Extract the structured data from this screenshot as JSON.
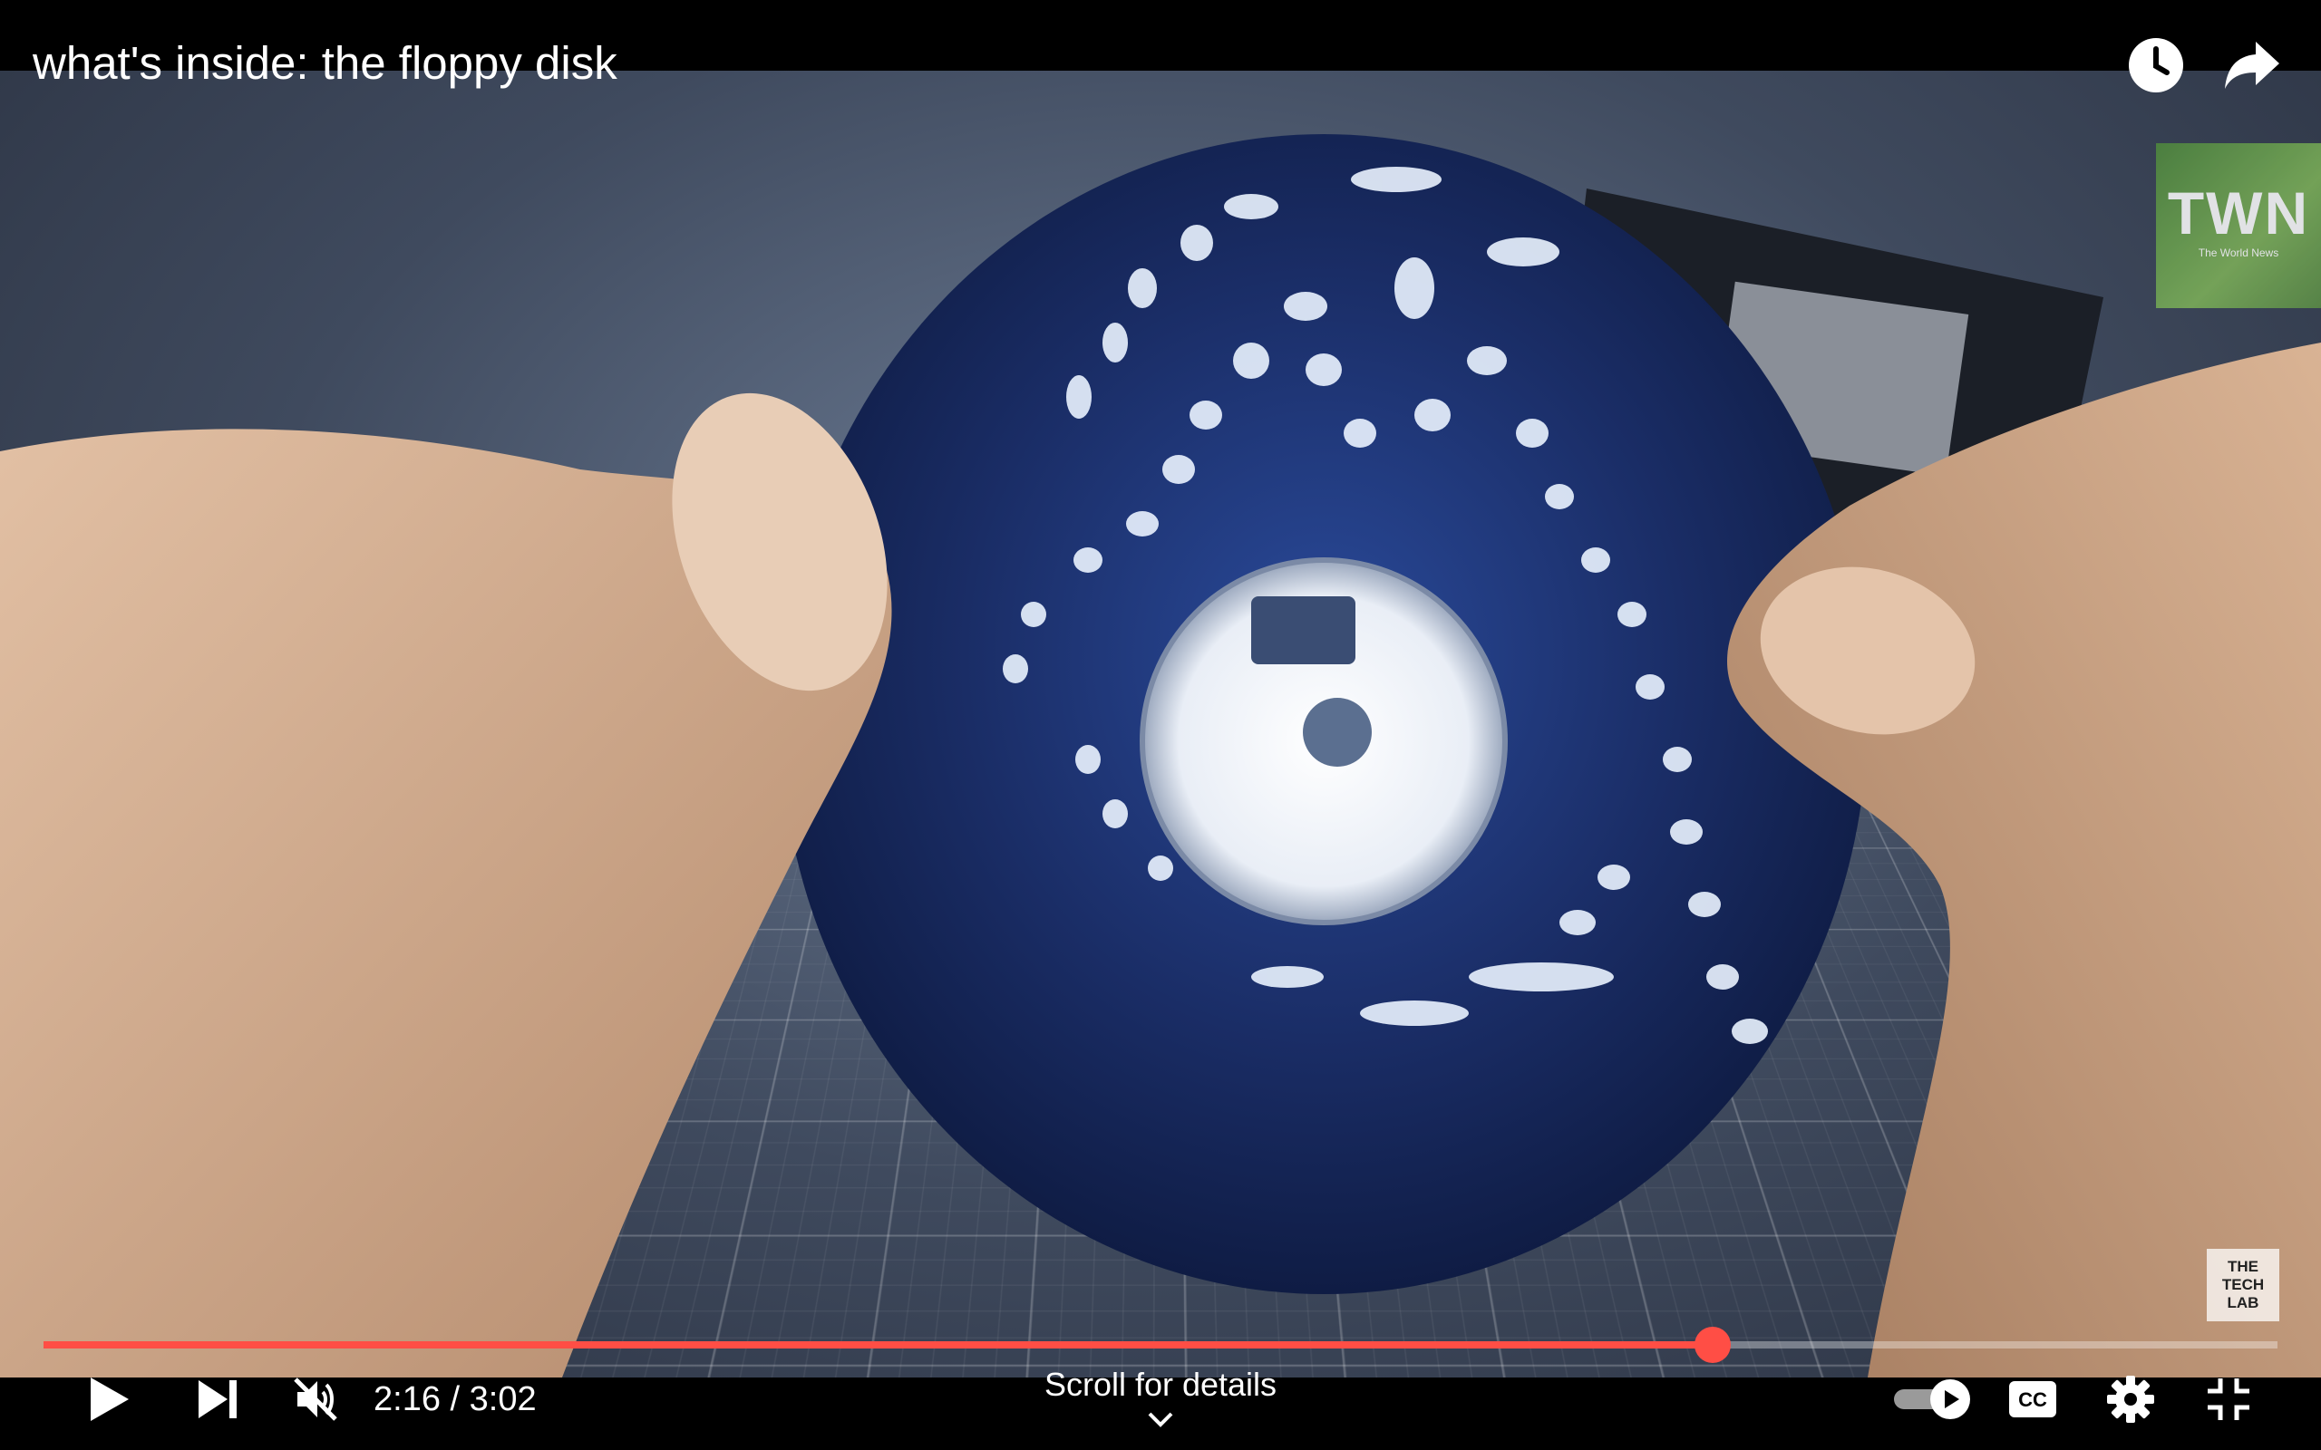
{
  "video": {
    "title": "what's inside: the floppy disk",
    "channel_badge": "TWN",
    "channel_badge_sub": "The World News",
    "watermark_lines": [
      "THE",
      "TECH",
      "LAB"
    ]
  },
  "top_actions": [
    {
      "icon": "clock-icon",
      "action": "watch-later"
    },
    {
      "icon": "share-icon",
      "action": "share"
    }
  ],
  "player": {
    "current_time": "2:16",
    "duration": "3:02",
    "time_display": "2:16 / 3:02",
    "progress_fraction": 0.747,
    "scroll_hint": "Scroll for details",
    "muted": true,
    "autoplay_on": true
  },
  "colors": {
    "accent": "#ff4e45",
    "background": "#000000",
    "text": "#ffffff"
  }
}
